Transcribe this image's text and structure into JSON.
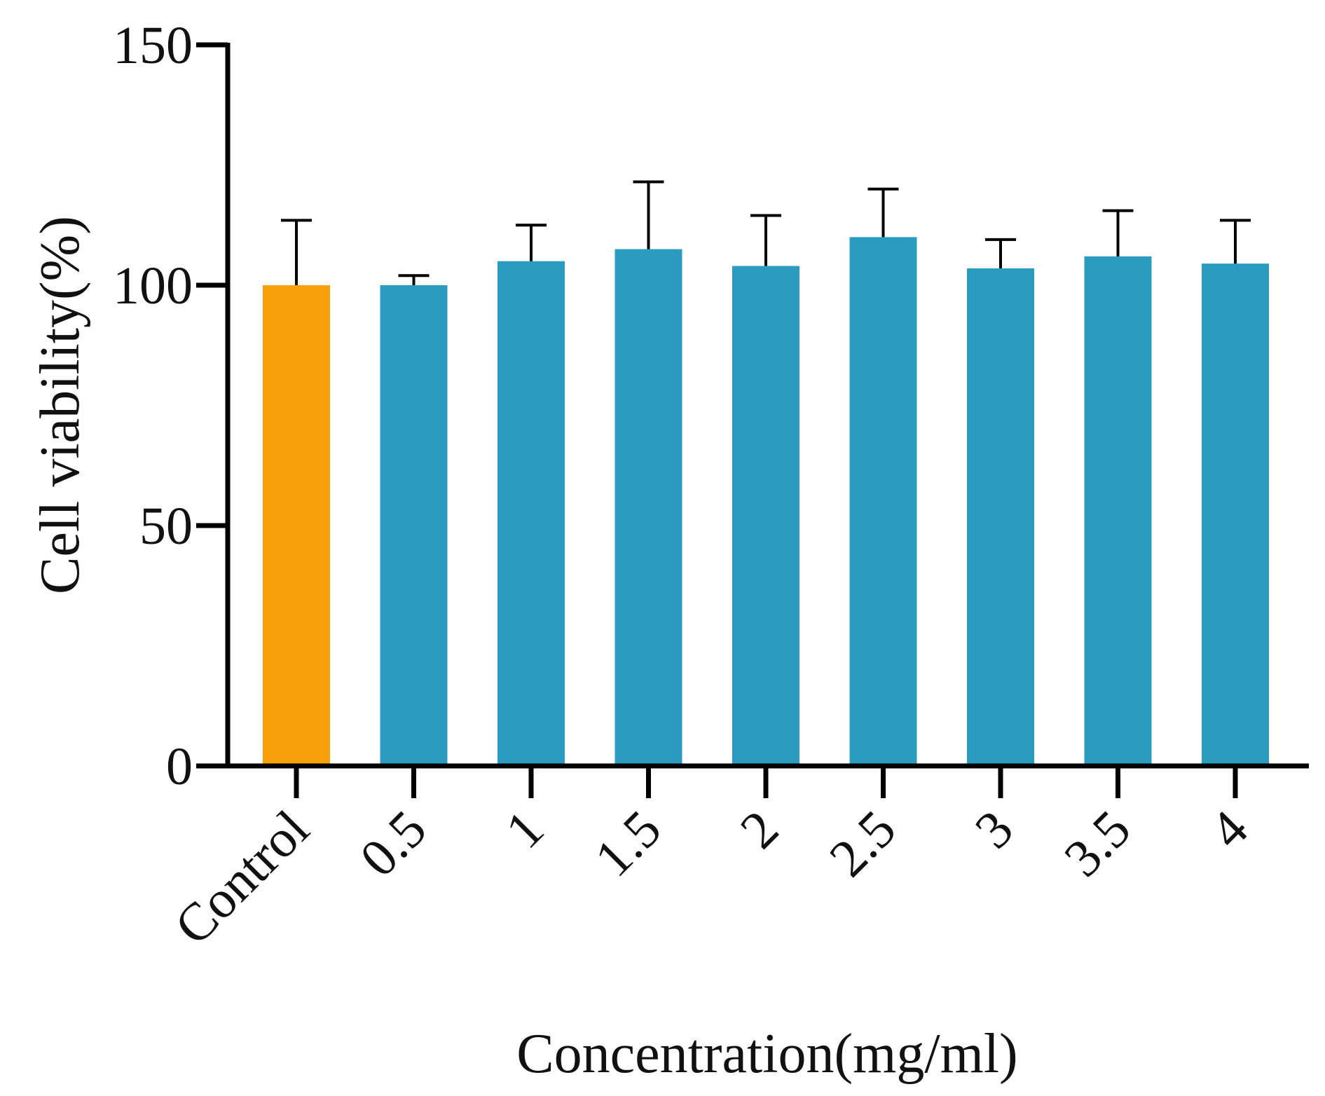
{
  "chart_data": {
    "type": "bar",
    "title": "",
    "xlabel": "Concentration(mg/ml)",
    "ylabel": "Cell viability(%)",
    "categories": [
      "Control",
      "0.5",
      "1",
      "1.5",
      "2",
      "2.5",
      "3",
      "3.5",
      "4"
    ],
    "values": [
      100,
      100,
      105,
      107.5,
      104,
      110,
      103.5,
      106,
      104.5
    ],
    "error_upper": [
      13.5,
      2,
      7.5,
      14,
      10.5,
      10,
      6,
      9.5,
      9
    ],
    "ylim": [
      0,
      150
    ],
    "yticks": [
      0,
      50,
      100,
      150
    ],
    "grid": false,
    "colors": {
      "control": "#F7A00B",
      "treatment": "#2B9CBF",
      "axis": "#000000"
    }
  }
}
